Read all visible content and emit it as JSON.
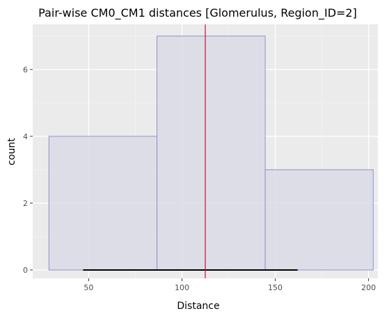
{
  "chart_data": {
    "type": "histogram",
    "title": "Pair-wise CM0_CM1 distances [Glomerulus, Region_ID=2]",
    "xlabel": "Distance",
    "ylabel": "count",
    "xlim": [
      20,
      205
    ],
    "ylim": [
      -0.25,
      7.35
    ],
    "x_ticks": [
      50,
      100,
      150,
      200
    ],
    "y_ticks": [
      0,
      2,
      4,
      6
    ],
    "x_minor_ticks": [
      75,
      125,
      175
    ],
    "y_minor_ticks": [
      1,
      3,
      5,
      7
    ],
    "grid": true,
    "bins": [
      {
        "x0": 28.7,
        "x1": 86.6,
        "count": 4
      },
      {
        "x0": 86.6,
        "x1": 144.6,
        "count": 7
      },
      {
        "x0": 144.6,
        "x1": 202.5,
        "count": 3
      }
    ],
    "vline": {
      "x": 112.5,
      "color": "#c8102e"
    },
    "hsegment": {
      "x0": 47,
      "x1": 162,
      "y": 0,
      "color": "#000000"
    },
    "colors": {
      "panel_bg": "#ebebeb",
      "grid_major": "#ffffff",
      "bar_fill": "#dadae6",
      "bar_stroke": "#8f8fcc"
    }
  }
}
